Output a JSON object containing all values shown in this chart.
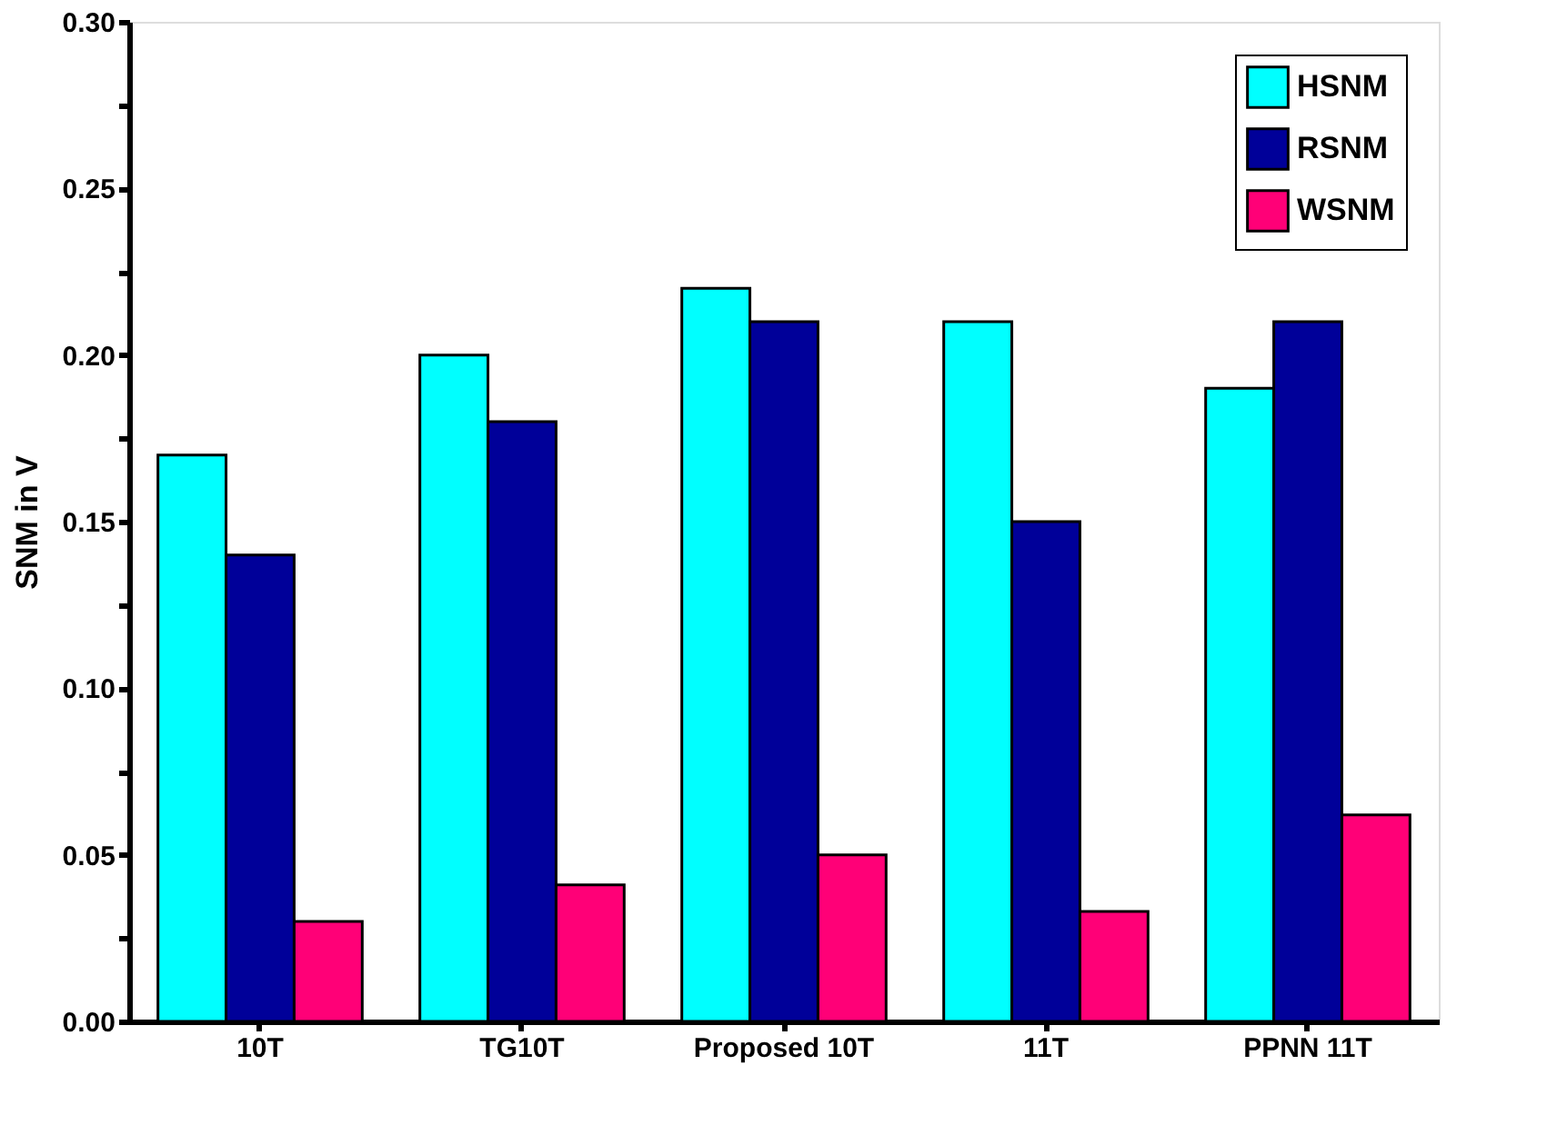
{
  "chart_data": {
    "type": "bar",
    "ylabel": "SNM in V",
    "categories": [
      "10T",
      "TG10T",
      "Proposed 10T",
      "11T",
      "PPNN 11T"
    ],
    "series": [
      {
        "name": "HSNM",
        "color": "#00ffff",
        "values": [
          0.17,
          0.2,
          0.22,
          0.21,
          0.19
        ]
      },
      {
        "name": "RSNM",
        "color": "#000099",
        "values": [
          0.14,
          0.18,
          0.21,
          0.15,
          0.21
        ]
      },
      {
        "name": "WSNM",
        "color": "#ff0077",
        "values": [
          0.03,
          0.041,
          0.05,
          0.033,
          0.062
        ]
      }
    ],
    "ylim": [
      0,
      0.3
    ],
    "yticks": [
      {
        "value": 0,
        "label": "0.00"
      },
      {
        "value": 0.025,
        "label": null
      },
      {
        "value": 0.05,
        "label": "0.05"
      },
      {
        "value": 0.075,
        "label": null
      },
      {
        "value": 0.1,
        "label": "0.10"
      },
      {
        "value": 0.125,
        "label": null
      },
      {
        "value": 0.15,
        "label": "0.15"
      },
      {
        "value": 0.175,
        "label": null
      },
      {
        "value": 0.2,
        "label": "0.20"
      },
      {
        "value": 0.225,
        "label": null
      },
      {
        "value": 0.25,
        "label": "0.25"
      },
      {
        "value": 0.275,
        "label": null
      },
      {
        "value": 0.3,
        "label": "0.30"
      }
    ],
    "legend": "top right",
    "grid": false
  }
}
